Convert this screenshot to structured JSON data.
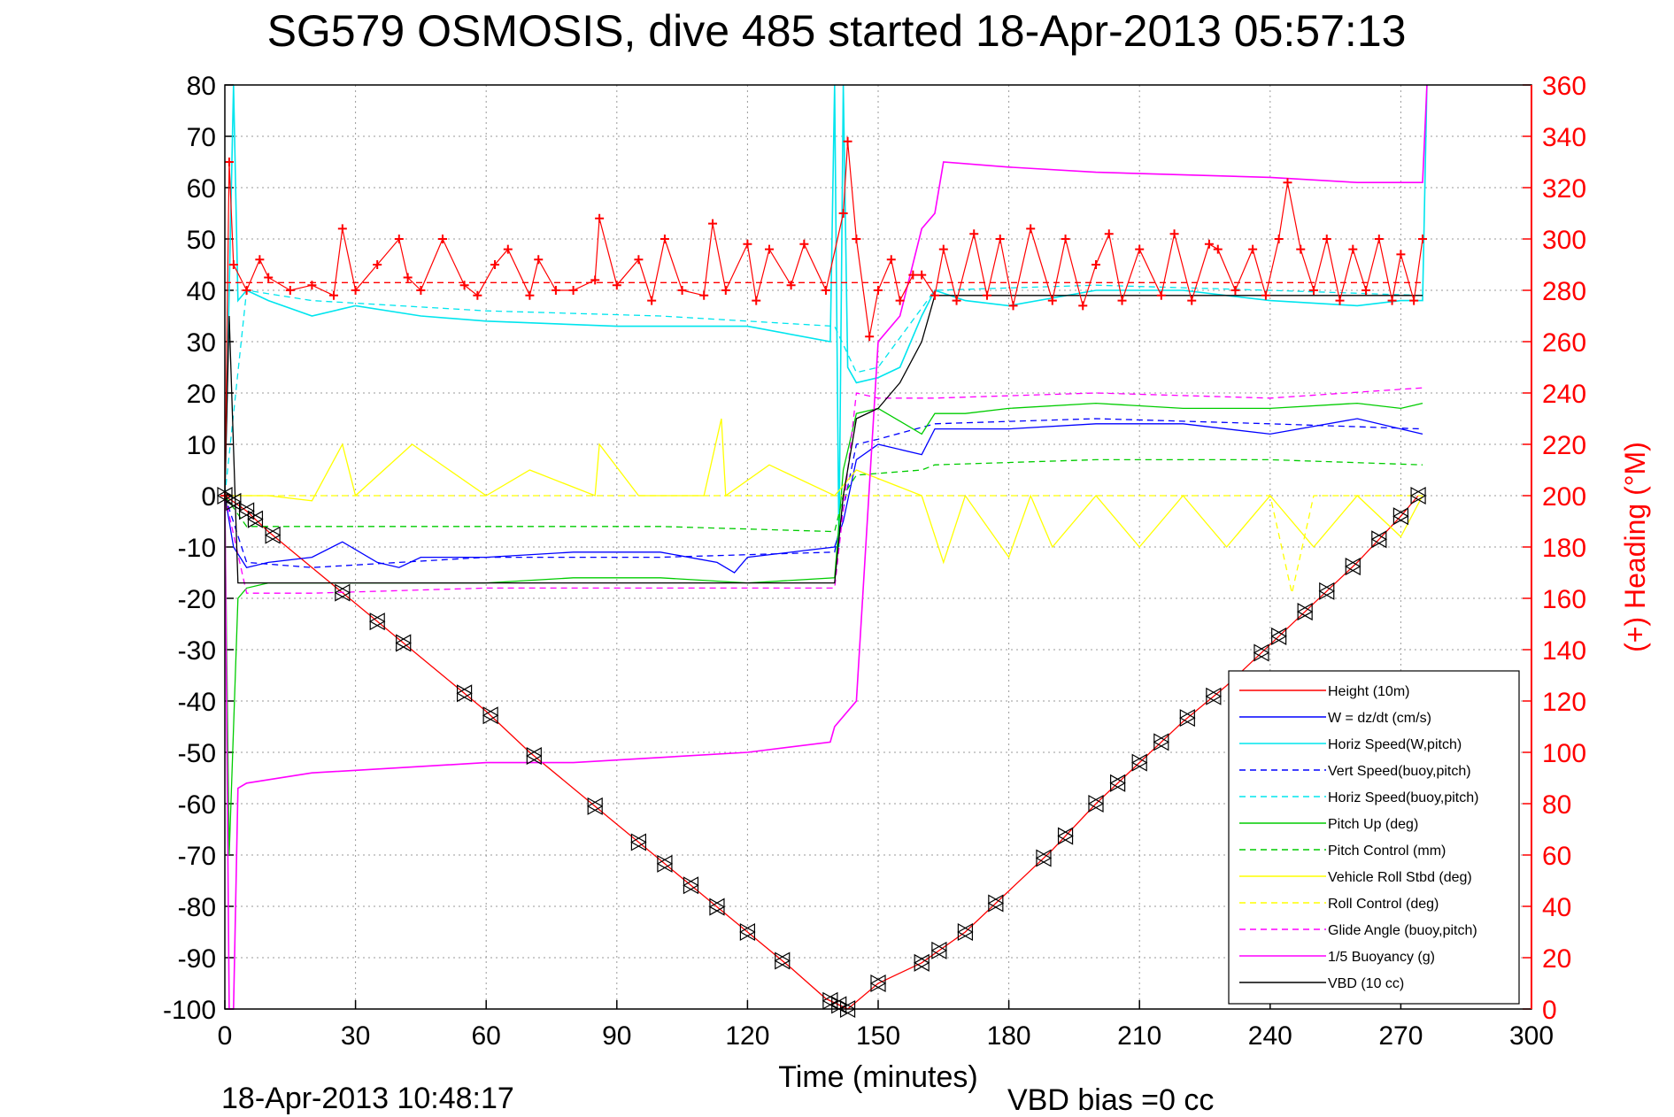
{
  "chart_data": {
    "type": "line",
    "title": "SG579 OSMOSIS, dive 485 started 18-Apr-2013 05:57:13",
    "xlabel": "Time (minutes)",
    "ylabel_right": "(+) Heading (°M)",
    "footer_left": "18-Apr-2013 10:48:17",
    "footer_right": "VBD bias =0 cc",
    "xlim": [
      0,
      300
    ],
    "ylim_left": [
      -100,
      80
    ],
    "ylim_right": [
      0,
      360
    ],
    "grid": true,
    "legend_position": "lower-right",
    "x_ticks": [
      "0",
      "30",
      "60",
      "90",
      "120",
      "150",
      "180",
      "210",
      "240",
      "270",
      "300"
    ],
    "y_ticks_left": [
      "80",
      "70",
      "60",
      "50",
      "40",
      "30",
      "20",
      "10",
      "0",
      "-10",
      "-20",
      "-30",
      "-40",
      "-50",
      "-60",
      "-70",
      "-80",
      "-90",
      "-100"
    ],
    "y_ticks_right": [
      "360",
      "340",
      "320",
      "300",
      "280",
      "260",
      "240",
      "220",
      "200",
      "180",
      "160",
      "140",
      "120",
      "100",
      "80",
      "60",
      "40",
      "20",
      "0"
    ],
    "series": [
      {
        "name": "Height (10m)",
        "color": "#ff0000",
        "dash": "solid",
        "axis": "left",
        "x": [
          0,
          5,
          10,
          20,
          30,
          40,
          50,
          60,
          70,
          80,
          90,
          100,
          110,
          120,
          130,
          138,
          143,
          150,
          160,
          170,
          180,
          190,
          200,
          210,
          220,
          230,
          240,
          250,
          260,
          270,
          274
        ],
        "y": [
          0,
          -3,
          -7,
          -14,
          -21,
          -28,
          -35,
          -42,
          -50,
          -57,
          -64,
          -71,
          -78,
          -85,
          -92,
          -98,
          -100,
          -95,
          -91,
          -85,
          -77,
          -69,
          -60,
          -52,
          -44,
          -37,
          -29,
          -21,
          -13,
          -4,
          0
        ]
      },
      {
        "name": "W = dz/dt (cm/s)",
        "color": "#0000ff",
        "dash": "solid",
        "axis": "left",
        "x": [
          0,
          2,
          5,
          10,
          20,
          27,
          35,
          40,
          45,
          60,
          80,
          100,
          113,
          117,
          120,
          140,
          142,
          145,
          150,
          160,
          163,
          180,
          200,
          220,
          240,
          260,
          270,
          275
        ],
        "y": [
          0,
          -10,
          -14,
          -13,
          -12,
          -9,
          -13,
          -14,
          -12,
          -12,
          -11,
          -11,
          -13,
          -15,
          -12,
          -10,
          -5,
          7,
          10,
          8,
          13,
          13,
          14,
          14,
          12,
          15,
          13,
          12
        ]
      },
      {
        "name": "Horiz Speed(W,pitch)",
        "color": "#00e5ee",
        "dash": "solid",
        "axis": "left",
        "x": [
          0,
          2,
          3,
          5,
          10,
          20,
          30,
          45,
          60,
          90,
          120,
          139,
          140,
          141,
          142,
          143,
          145,
          150,
          155,
          160,
          163,
          170,
          180,
          200,
          220,
          240,
          260,
          270,
          275,
          276
        ],
        "y": [
          0,
          80,
          38,
          40,
          38,
          35,
          37,
          35,
          34,
          33,
          33,
          30,
          80,
          -10,
          80,
          25,
          22,
          23,
          25,
          35,
          40,
          38,
          37,
          40,
          40,
          38,
          37,
          38,
          38,
          80
        ]
      },
      {
        "name": "Vert Speed(buoy,pitch)",
        "color": "#0000ff",
        "dash": "dashed",
        "axis": "left",
        "x": [
          0,
          5,
          20,
          60,
          100,
          140,
          145,
          150,
          163,
          200,
          240,
          275
        ],
        "y": [
          0,
          -13,
          -14,
          -12,
          -12,
          -11,
          10,
          11,
          14,
          15,
          14,
          13
        ]
      },
      {
        "name": "Horiz Speed(buoy,pitch)",
        "color": "#00e5ee",
        "dash": "dashed",
        "axis": "left",
        "x": [
          0,
          5,
          20,
          60,
          100,
          140,
          145,
          150,
          163,
          200,
          240,
          275
        ],
        "y": [
          0,
          40,
          38,
          36,
          35,
          33,
          24,
          25,
          40,
          41,
          40,
          39
        ]
      },
      {
        "name": "Pitch Up (deg)",
        "color": "#00cc00",
        "dash": "solid",
        "axis": "left",
        "x": [
          0,
          1,
          3,
          5,
          10,
          20,
          40,
          60,
          80,
          100,
          120,
          140,
          142,
          145,
          150,
          160,
          163,
          170,
          180,
          200,
          220,
          240,
          260,
          270,
          275
        ],
        "y": [
          0,
          -70,
          -20,
          -18,
          -17,
          -17,
          -17,
          -17,
          -16,
          -16,
          -17,
          -16,
          5,
          16,
          17,
          12,
          16,
          16,
          17,
          18,
          17,
          17,
          18,
          17,
          18
        ]
      },
      {
        "name": "Pitch Control (mm)",
        "color": "#00cc00",
        "dash": "dashed",
        "axis": "left",
        "x": [
          0,
          5,
          30,
          60,
          100,
          140,
          142,
          145,
          160,
          163,
          200,
          240,
          275
        ],
        "y": [
          0,
          -6,
          -6,
          -6,
          -6,
          -7,
          0,
          4,
          5,
          6,
          7,
          7,
          6
        ]
      },
      {
        "name": "Vehicle Roll Stbd (deg)",
        "color": "#ffff00",
        "dash": "solid",
        "axis": "left",
        "x": [
          0,
          10,
          20,
          27,
          30,
          43,
          60,
          70,
          85,
          86,
          95,
          110,
          114,
          115,
          125,
          140,
          145,
          160,
          165,
          170,
          180,
          185,
          190,
          200,
          210,
          220,
          230,
          240,
          250,
          260,
          270,
          275
        ],
        "y": [
          0,
          0,
          -1,
          10,
          0,
          10,
          0,
          5,
          0,
          10,
          0,
          0,
          15,
          0,
          6,
          0,
          5,
          0,
          -13,
          0,
          -12,
          0,
          -10,
          0,
          -10,
          0,
          -10,
          0,
          -10,
          0,
          -8,
          0
        ]
      },
      {
        "name": "Roll Control (deg)",
        "color": "#ffff00",
        "dash": "dashed",
        "axis": "left",
        "x": [
          0,
          30,
          60,
          90,
          120,
          140,
          145,
          170,
          200,
          240,
          245,
          250,
          260,
          275
        ],
        "y": [
          0,
          0,
          0,
          0,
          0,
          0,
          0,
          0,
          0,
          0,
          -19,
          0,
          0,
          0
        ]
      },
      {
        "name": "Glide Angle (buoy,pitch)",
        "color": "#ff00ff",
        "dash": "dashed",
        "axis": "left",
        "x": [
          0,
          5,
          20,
          60,
          100,
          140,
          145,
          150,
          163,
          200,
          240,
          275
        ],
        "y": [
          0,
          -19,
          -19,
          -18,
          -18,
          -18,
          20,
          19,
          19,
          20,
          19,
          21
        ]
      },
      {
        "name": "1/5 Buoyancy (g)",
        "color": "#ff00ff",
        "dash": "solid",
        "axis": "left",
        "x": [
          0,
          1,
          2,
          3,
          5,
          20,
          40,
          60,
          80,
          100,
          120,
          139,
          140,
          145,
          150,
          155,
          160,
          163,
          165,
          180,
          200,
          240,
          260,
          275,
          276
        ],
        "y": [
          0,
          -100,
          -100,
          -57,
          -56,
          -54,
          -53,
          -52,
          -52,
          -51,
          -50,
          -48,
          -45,
          -40,
          30,
          35,
          52,
          55,
          65,
          64,
          63,
          62,
          61,
          61,
          80
        ]
      },
      {
        "name": "VBD (10 cc)",
        "color": "#000000",
        "dash": "solid",
        "axis": "left",
        "x": [
          0,
          1,
          3,
          10,
          40,
          80,
          120,
          140,
          142,
          145,
          150,
          155,
          160,
          163,
          170,
          200,
          240,
          275
        ],
        "y": [
          0,
          35,
          -17,
          -17,
          -17,
          -17,
          -17,
          -17,
          0,
          15,
          17,
          22,
          30,
          39,
          39,
          39,
          39,
          39
        ]
      },
      {
        "name": "",
        "color": "#ff0000",
        "dash": "markers",
        "axis": "right",
        "x": [
          0,
          1,
          2,
          5,
          8,
          10,
          15,
          20,
          25,
          27,
          30,
          35,
          40,
          42,
          45,
          50,
          55,
          58,
          62,
          65,
          70,
          72,
          76,
          80,
          85,
          86,
          90,
          95,
          98,
          101,
          105,
          110,
          112,
          115,
          120,
          122,
          125,
          130,
          133,
          138,
          142,
          143,
          145,
          148,
          150,
          153,
          155,
          158,
          160,
          163,
          165,
          168,
          172,
          175,
          178,
          181,
          185,
          190,
          193,
          197,
          200,
          203,
          206,
          210,
          215,
          218,
          222,
          226,
          228,
          232,
          236,
          239,
          242,
          244,
          247,
          250,
          253,
          256,
          259,
          262,
          265,
          268,
          270,
          273,
          275
        ],
        "y": [
          200,
          330,
          290,
          280,
          292,
          285,
          280,
          282,
          278,
          304,
          280,
          290,
          300,
          285,
          280,
          300,
          282,
          278,
          290,
          296,
          278,
          292,
          280,
          280,
          284,
          308,
          282,
          292,
          276,
          300,
          280,
          278,
          306,
          280,
          298,
          276,
          296,
          282,
          298,
          280,
          310,
          338,
          300,
          262,
          280,
          292,
          276,
          286,
          286,
          278,
          296,
          276,
          302,
          278,
          300,
          274,
          304,
          276,
          300,
          274,
          290,
          302,
          276,
          296,
          278,
          302,
          276,
          298,
          296,
          280,
          296,
          278,
          300,
          322,
          296,
          280,
          300,
          276,
          296,
          280,
          300,
          276,
          294,
          276,
          300
        ]
      },
      {
        "name": "",
        "color": "#ff0000",
        "dash": "dashed",
        "axis": "right",
        "x": [
          0,
          275
        ],
        "y": [
          283,
          283
        ]
      }
    ],
    "markers_on": "Height (10m)",
    "marker_x": [
      0,
      2,
      5,
      7,
      11,
      27,
      35,
      41,
      55,
      61,
      71,
      85,
      95,
      101,
      107,
      113,
      120,
      128,
      139,
      141,
      143,
      150,
      160,
      164,
      170,
      177,
      188,
      193,
      200,
      205,
      210,
      215,
      221,
      227,
      238,
      242,
      248,
      253,
      259,
      265,
      270,
      274
    ]
  }
}
